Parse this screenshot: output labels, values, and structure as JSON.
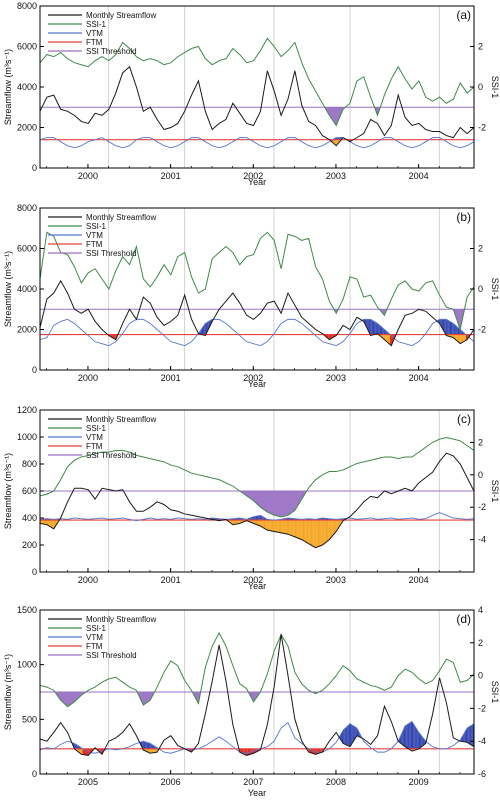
{
  "figure": {
    "colors": {
      "streamflow": "#1a1a1a",
      "ssi": "#3f8a4a",
      "vtm": "#5878d0",
      "ftm": "#e8413a",
      "threshold": "#9a72c4",
      "fill_ssi": "#9a72c4",
      "fill_vtm": "#3346b0",
      "fill_ftm": "#e8281e",
      "fill_overlap": "#f5a623"
    }
  },
  "chart_data": [
    {
      "type": "line",
      "panel_label": "(a)",
      "xlabel": "Year",
      "ylabel_left": "Streamflow (m³s⁻¹)",
      "ylabel_right": "SSI-1",
      "x_range": [
        1999.42,
        2004.67
      ],
      "x_ticks": [
        2000,
        2001,
        2002,
        2003,
        2004
      ],
      "x_tick_labels": [
        "2000",
        "2001",
        "2002",
        "2003",
        "2004"
      ],
      "ylim_left": [
        0,
        8000
      ],
      "y_ticks_left": [
        0,
        2000,
        4000,
        6000,
        8000
      ],
      "ylim_right": [
        -4,
        4
      ],
      "y_ticks_right": [
        -2,
        0,
        2
      ],
      "vertical_lines": [
        2000.25,
        2001.17,
        2002.25,
        2003.17,
        2004.25
      ],
      "legend": [
        "Monthly Streamflow",
        "SSI-1",
        "VTM",
        "FTM",
        "SSI Threshold"
      ],
      "ssi_threshold": -1,
      "ftm_value": 1400,
      "x_start": 1999.42,
      "x_step": 0.08333,
      "series": [
        {
          "name": "Monthly Streamflow",
          "axis": "left",
          "values": [
            2800,
            3500,
            3600,
            2900,
            2800,
            2600,
            2300,
            2200,
            2700,
            2600,
            2900,
            3700,
            4700,
            5000,
            4000,
            2800,
            3000,
            2400,
            1900,
            2000,
            2200,
            2800,
            3600,
            4300,
            2800,
            1900,
            2200,
            2400,
            3200,
            2700,
            2200,
            2100,
            2800,
            4800,
            3800,
            2600,
            3400,
            4800,
            3100,
            2300,
            2100,
            1600,
            1400,
            1100,
            1500,
            1300,
            1500,
            1700,
            2400,
            2200,
            1600,
            2100,
            3600,
            2500,
            2100,
            2200,
            1900,
            1800,
            1800,
            1600,
            1500,
            2000,
            1700,
            2000
          ]
        },
        {
          "name": "SSI-1",
          "axis": "right",
          "values": [
            1.2,
            1.6,
            1.5,
            1.7,
            1.4,
            1.2,
            1.1,
            1.0,
            1.3,
            1.5,
            1.3,
            1.6,
            2.2,
            1.9,
            1.5,
            1.3,
            1.4,
            1.3,
            1.1,
            1.2,
            1.5,
            1.7,
            1.9,
            2.0,
            1.4,
            1.1,
            1.3,
            1.4,
            1.9,
            1.6,
            1.2,
            1.3,
            1.8,
            2.4,
            2.0,
            1.5,
            1.8,
            2.2,
            1.2,
            0.4,
            -0.2,
            -0.8,
            -1.4,
            -1.9,
            -1.1,
            -0.8,
            0.3,
            0.5,
            -0.5,
            -1.4,
            -0.4,
            0.4,
            1.0,
            0.4,
            -0.1,
            0.3,
            -0.5,
            -0.7,
            -0.5,
            -0.8,
            -0.6,
            0.2,
            -0.3,
            0.0
          ]
        },
        {
          "name": "VTM",
          "axis": "left",
          "values": [
            1400,
            1500,
            1500,
            1300,
            1100,
            1000,
            1100,
            1300,
            1400,
            1500,
            1300,
            1100,
            1000,
            1100,
            1400,
            1500,
            1500,
            1300,
            1100,
            1000,
            1100,
            1300,
            1500,
            1500,
            1300,
            1100,
            1000,
            1100,
            1300,
            1500,
            1500,
            1300,
            1100,
            1000,
            1100,
            1300,
            1500,
            1500,
            1300,
            1100,
            1000,
            1100,
            1300,
            1500,
            1500,
            1300,
            1100,
            1000,
            1100,
            1300,
            1500,
            1500,
            1300,
            1100,
            1000,
            1100,
            1300,
            1500,
            1500,
            1300,
            1100,
            1000,
            1100,
            1300
          ]
        }
      ]
    },
    {
      "type": "line",
      "panel_label": "(b)",
      "xlabel": "Year",
      "ylabel_left": "Streamflow (m³s⁻¹)",
      "ylabel_right": "SSI-1",
      "x_range": [
        1999.42,
        2004.67
      ],
      "x_ticks": [
        2000,
        2001,
        2002,
        2003,
        2004
      ],
      "x_tick_labels": [
        "2000",
        "2001",
        "2002",
        "2003",
        "2004"
      ],
      "ylim_left": [
        0,
        8000
      ],
      "y_ticks_left": [
        0,
        2000,
        4000,
        6000,
        8000
      ],
      "ylim_right": [
        -4,
        4
      ],
      "y_ticks_right": [
        -2,
        0,
        2
      ],
      "vertical_lines": [
        2000.25,
        2001.17,
        2002.25,
        2003.17,
        2004.25
      ],
      "legend": [
        "Monthly Streamflow",
        "SSI-1",
        "VTM",
        "FTM",
        "SSI Threshold"
      ],
      "ssi_threshold": -1,
      "ftm_value": 1750,
      "x_start": 1999.42,
      "x_step": 0.08333,
      "series": [
        {
          "name": "Monthly Streamflow",
          "axis": "left",
          "values": [
            2100,
            3500,
            3800,
            4400,
            3800,
            3000,
            2800,
            3000,
            2400,
            2000,
            1700,
            1500,
            2300,
            3000,
            2500,
            3600,
            3300,
            2600,
            2200,
            2400,
            2700,
            3700,
            2500,
            1800,
            1700,
            2400,
            3000,
            3400,
            3800,
            3300,
            2700,
            2500,
            2800,
            3300,
            3400,
            2800,
            3800,
            3200,
            2600,
            2300,
            2000,
            1800,
            1500,
            1700,
            2200,
            2000,
            2600,
            2400,
            1700,
            1800,
            1500,
            1200,
            2000,
            2700,
            2800,
            3000,
            2900,
            2600,
            2300,
            1700,
            1600,
            1300,
            1500,
            2000
          ]
        },
        {
          "name": "SSI-1",
          "axis": "right",
          "values": [
            0.5,
            2.8,
            2.6,
            1.8,
            1.7,
            1.1,
            0.3,
            0.8,
            1.0,
            0.5,
            0.0,
            0.9,
            1.6,
            1.2,
            2.1,
            0.5,
            0.1,
            0.6,
            1.2,
            0.7,
            1.6,
            1.8,
            0.6,
            -0.2,
            0.0,
            1.5,
            1.8,
            2.1,
            1.8,
            1.2,
            1.6,
            1.7,
            2.5,
            2.8,
            2.4,
            1.0,
            2.7,
            2.6,
            2.4,
            2.5,
            1.1,
            0.5,
            -0.6,
            -1.2,
            -0.5,
            0.6,
            0.5,
            -0.4,
            -0.3,
            -0.9,
            -1.3,
            -0.5,
            0.2,
            0.4,
            0.0,
            -0.1,
            0.3,
            0.4,
            -0.3,
            -0.9,
            -1.0,
            -2.0,
            -0.4,
            0.1
          ]
        },
        {
          "name": "VTM",
          "axis": "left",
          "values": [
            1500,
            1600,
            2200,
            2400,
            2500,
            2300,
            2000,
            1700,
            1400,
            1300,
            1200,
            1400,
            1800,
            2300,
            2500,
            2500,
            2300,
            2000,
            1700,
            1400,
            1300,
            1200,
            1400,
            1800,
            2300,
            2500,
            2500,
            2300,
            2000,
            1700,
            1400,
            1300,
            1200,
            1400,
            1800,
            2300,
            2500,
            2500,
            2300,
            2000,
            1700,
            1400,
            1300,
            1200,
            1400,
            1800,
            2300,
            2500,
            2500,
            2300,
            2000,
            1700,
            1400,
            1300,
            1200,
            1400,
            1800,
            2300,
            2500,
            2500,
            2300,
            2000,
            1700,
            1400
          ]
        }
      ]
    },
    {
      "type": "line",
      "panel_label": "(c)",
      "xlabel": "Year",
      "ylabel_left": "Streamflow (m³s⁻¹)",
      "ylabel_right": "SSI-1",
      "x_range": [
        1999.42,
        2004.67
      ],
      "x_ticks": [
        2000,
        2001,
        2002,
        2003,
        2004
      ],
      "x_tick_labels": [
        "2000",
        "2001",
        "2002",
        "2003",
        "2004"
      ],
      "ylim_left": [
        0,
        1200
      ],
      "y_ticks_left": [
        0,
        200,
        400,
        600,
        800,
        1000,
        1200
      ],
      "ylim_right": [
        -6,
        4
      ],
      "y_ticks_right": [
        -4,
        -2,
        0,
        2
      ],
      "vertical_lines": [
        2000.25,
        2001.17,
        2002.25,
        2003.17,
        2004.25
      ],
      "legend": [
        "Monthly Streamflow",
        "SSI-1",
        "VTM",
        "FTM",
        "SSI Threshold"
      ],
      "ssi_threshold": -1,
      "ftm_value": 385,
      "x_start": 1999.42,
      "x_step": 0.08333,
      "series": [
        {
          "name": "Monthly Streamflow",
          "axis": "left",
          "values": [
            360,
            350,
            320,
            400,
            520,
            620,
            620,
            610,
            540,
            620,
            610,
            600,
            610,
            520,
            450,
            450,
            480,
            520,
            500,
            460,
            450,
            430,
            420,
            410,
            400,
            390,
            380,
            390,
            350,
            360,
            380,
            360,
            340,
            310,
            300,
            290,
            280,
            260,
            240,
            210,
            180,
            200,
            240,
            300,
            380,
            410,
            460,
            520,
            560,
            550,
            600,
            580,
            600,
            620,
            600,
            660,
            700,
            740,
            820,
            880,
            860,
            800,
            700,
            600
          ]
        },
        {
          "name": "SSI-1",
          "axis": "right",
          "values": [
            -1.3,
            -1.2,
            -1.0,
            -0.3,
            0.5,
            0.9,
            1.1,
            1.2,
            1.3,
            1.4,
            1.4,
            1.5,
            1.5,
            1.4,
            1.2,
            1.1,
            1.0,
            0.9,
            0.8,
            0.6,
            0.5,
            0.3,
            0.1,
            0.0,
            -0.1,
            -0.2,
            -0.3,
            -0.5,
            -0.7,
            -1.0,
            -1.3,
            -1.6,
            -2.0,
            -2.3,
            -2.5,
            -2.6,
            -2.5,
            -2.2,
            -1.5,
            -0.8,
            -0.3,
            0.0,
            0.2,
            0.2,
            0.3,
            0.5,
            0.7,
            0.8,
            0.9,
            1.0,
            1.1,
            1.1,
            1.0,
            1.1,
            1.1,
            1.4,
            1.7,
            2.0,
            2.2,
            2.3,
            2.2,
            2.1,
            1.8,
            1.5
          ]
        },
        {
          "name": "VTM",
          "axis": "left",
          "values": [
            390,
            395,
            390,
            395,
            390,
            400,
            395,
            390,
            395,
            400,
            390,
            395,
            400,
            390,
            380,
            390,
            400,
            390,
            395,
            390,
            400,
            395,
            390,
            395,
            390,
            400,
            395,
            390,
            395,
            400,
            390,
            410,
            420,
            390,
            385,
            390,
            400,
            395,
            390,
            395,
            390,
            400,
            395,
            390,
            395,
            400,
            390,
            395,
            400,
            390,
            395,
            400,
            390,
            395,
            400,
            390,
            395,
            420,
            440,
            420,
            400,
            395,
            390,
            395
          ]
        }
      ]
    },
    {
      "type": "line",
      "panel_label": "(d)",
      "xlabel": "Year",
      "ylabel_left": "Streamflow (m³s⁻¹)",
      "ylabel_right": "SSI-1",
      "x_range": [
        2004.42,
        2009.67
      ],
      "x_ticks": [
        2005,
        2006,
        2007,
        2008,
        2009
      ],
      "x_tick_labels": [
        "2005",
        "2006",
        "2007",
        "2008",
        "2009"
      ],
      "ylim_left": [
        0,
        1500
      ],
      "y_ticks_left": [
        0,
        500,
        1000,
        1500
      ],
      "ylim_right": [
        -6,
        4
      ],
      "y_ticks_right": [
        -6,
        -4,
        -2,
        0,
        2,
        4
      ],
      "vertical_lines": [
        2005.25,
        2006.17,
        2007.25,
        2008.17,
        2009.25
      ],
      "legend": [
        "Monthly Streamflow",
        "SSI-1",
        "VTM",
        "FTM",
        "SSI Threshold"
      ],
      "ssi_threshold": -1,
      "ftm_value": 230,
      "x_start": 2004.42,
      "x_step": 0.08333,
      "series": [
        {
          "name": "Monthly Streamflow",
          "axis": "left",
          "values": [
            320,
            300,
            380,
            470,
            380,
            230,
            180,
            170,
            240,
            180,
            300,
            330,
            380,
            460,
            350,
            220,
            190,
            200,
            310,
            350,
            260,
            230,
            200,
            280,
            550,
            850,
            1180,
            850,
            450,
            200,
            170,
            190,
            220,
            450,
            800,
            1280,
            900,
            500,
            300,
            200,
            180,
            200,
            300,
            380,
            280,
            250,
            350,
            320,
            270,
            350,
            620,
            480,
            300,
            250,
            210,
            230,
            280,
            550,
            880,
            650,
            330,
            300,
            290,
            250
          ]
        },
        {
          "name": "SSI-1",
          "axis": "right",
          "values": [
            -0.6,
            -0.7,
            -0.9,
            -1.5,
            -1.9,
            -1.6,
            -1.2,
            -0.9,
            -0.7,
            -0.4,
            -0.2,
            -0.1,
            -0.4,
            -0.7,
            -0.9,
            -1.8,
            -1.5,
            -0.7,
            0.2,
            0.9,
            0.6,
            -0.3,
            -0.9,
            -1.7,
            0.5,
            1.8,
            2.6,
            1.8,
            0.6,
            -0.5,
            -0.8,
            -1.6,
            -1.0,
            0.1,
            1.5,
            2.5,
            1.8,
            0.2,
            -0.5,
            -0.9,
            -1.1,
            -0.9,
            -0.5,
            0.0,
            0.6,
            0.3,
            -0.2,
            -0.4,
            -0.6,
            -0.7,
            -0.9,
            -0.7,
            0.0,
            0.4,
            0.2,
            -0.2,
            -0.5,
            -0.3,
            0.3,
            1.0,
            0.8,
            -0.4,
            -0.3,
            0.1
          ]
        },
        {
          "name": "VTM",
          "axis": "left",
          "values": [
            220,
            240,
            230,
            270,
            300,
            280,
            240,
            200,
            190,
            210,
            230,
            220,
            230,
            250,
            280,
            300,
            280,
            240,
            200,
            190,
            210,
            230,
            220,
            230,
            260,
            300,
            340,
            300,
            250,
            200,
            190,
            210,
            230,
            250,
            300,
            420,
            470,
            330,
            280,
            230,
            200,
            200,
            230,
            290,
            400,
            460,
            420,
            300,
            240,
            200,
            200,
            230,
            300,
            440,
            480,
            380,
            300,
            250,
            230,
            230,
            260,
            310,
            420,
            460
          ]
        }
      ]
    }
  ]
}
